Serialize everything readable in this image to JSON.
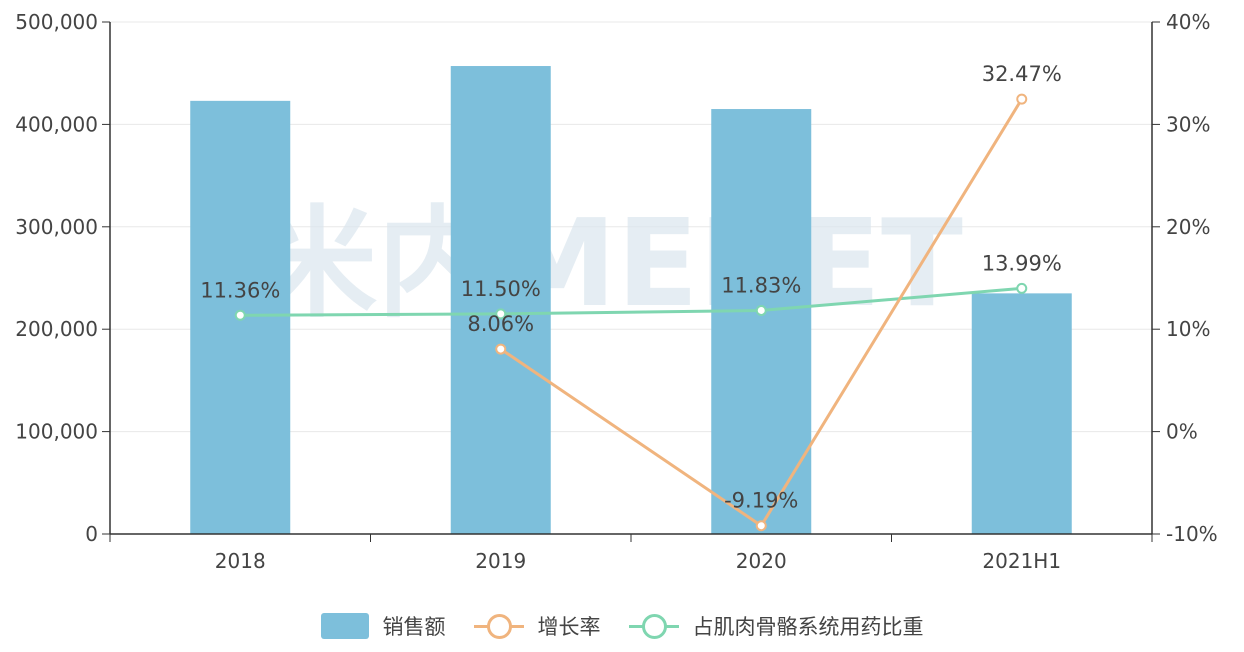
{
  "watermark": "米内MENET",
  "chart_data": {
    "type": "bar",
    "categories": [
      "2018",
      "2019",
      "2020",
      "2021H1"
    ],
    "series": [
      {
        "name": "销售额",
        "type": "bar",
        "axis": "left",
        "color": "#7dbfdb",
        "values": [
          423000,
          457000,
          415000,
          235000
        ]
      },
      {
        "name": "增长率",
        "type": "line",
        "axis": "right",
        "color": "#f0b47e",
        "values": [
          null,
          8.06,
          -9.19,
          32.47
        ],
        "labels": [
          "",
          "8.06%",
          "-9.19%",
          "32.47%"
        ]
      },
      {
        "name": "占肌肉骨骼系统用药比重",
        "type": "line",
        "axis": "right",
        "color": "#7fd6b0",
        "values": [
          11.36,
          11.5,
          11.83,
          13.99
        ],
        "labels": [
          "11.36%",
          "11.50%",
          "11.83%",
          "13.99%"
        ]
      }
    ],
    "y_left": {
      "min": 0,
      "max": 500000,
      "ticks": [
        "0",
        "100,000",
        "200,000",
        "300,000",
        "400,000",
        "500,000"
      ]
    },
    "y_right": {
      "min": -10,
      "max": 40,
      "ticks": [
        "-10%",
        "0%",
        "10%",
        "20%",
        "30%",
        "40%"
      ]
    },
    "grid": true,
    "legend_position": "bottom"
  }
}
